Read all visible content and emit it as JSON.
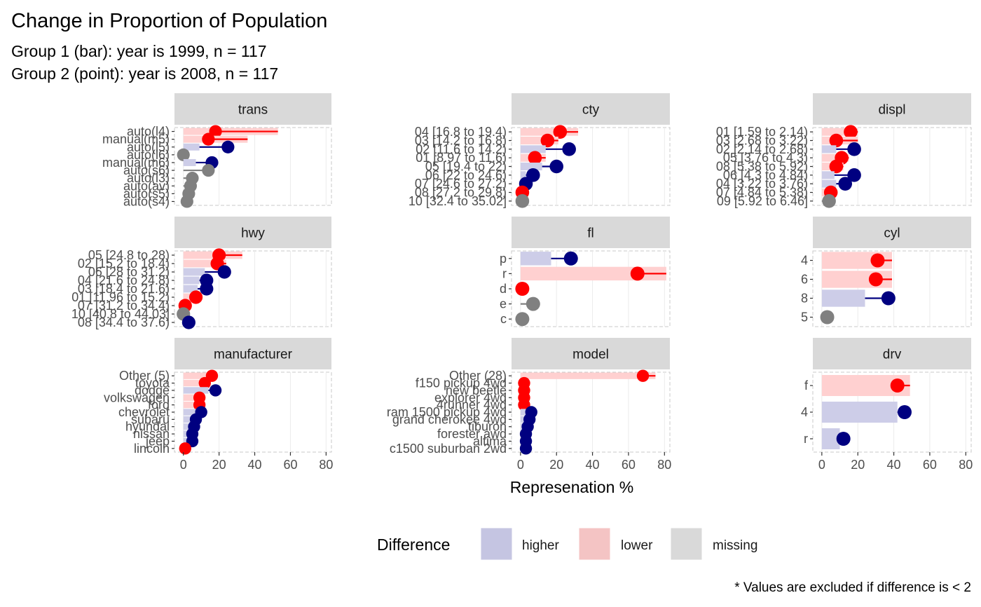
{
  "chart_data": {
    "type": "bar",
    "title": "Change in Proportion of Population",
    "subtitle_lines": [
      "Group 1 (bar): year is 1999, n = 117",
      "Group 2 (point): year is 2008, n = 117"
    ],
    "xlabel": "Represenation %",
    "xlim": [
      -5,
      83
    ],
    "xticks": [
      0,
      20,
      40,
      60,
      80
    ],
    "caption": "* Values are excluded if difference is < 2",
    "legend": {
      "title": "Difference",
      "placement": "bottom",
      "items": [
        {
          "key": "higher",
          "label": "higher",
          "color": "#c5c5e2"
        },
        {
          "key": "lower",
          "label": "lower",
          "color": "#f4c4c4"
        },
        {
          "key": "missing",
          "label": "missing",
          "color": "#d9d9d9"
        }
      ]
    },
    "colors": {
      "higher_bar": "#cdcde8",
      "lower_bar": "#ffd0d0",
      "higher_point": "#000080",
      "lower_point": "#ff0000",
      "missing_point": "#808080",
      "strip_bg": "#d9d9d9",
      "panel_border": "#c8c8c8",
      "grid": "#ebebeb"
    },
    "facets": [
      {
        "name": "trans",
        "rows": [
          {
            "label": "auto(l4)",
            "bar": 53,
            "point": 18,
            "status": "lower"
          },
          {
            "label": "manual(m5)",
            "bar": 36,
            "point": 14,
            "status": "lower"
          },
          {
            "label": "auto(l5)",
            "bar": 9,
            "point": 25,
            "status": "higher"
          },
          {
            "label": "auto(l6)",
            "bar": 0,
            "point": 0,
            "status": "missing"
          },
          {
            "label": "manual(m6)",
            "bar": 7,
            "point": 16,
            "status": "higher"
          },
          {
            "label": "auto(s6)",
            "bar": 0,
            "point": 14,
            "status": "missing"
          },
          {
            "label": "auto(l3)",
            "bar": 0,
            "point": 5,
            "status": "missing"
          },
          {
            "label": "auto(av)",
            "bar": 0,
            "point": 4,
            "status": "missing"
          },
          {
            "label": "auto(s5)",
            "bar": 0,
            "point": 3,
            "status": "missing"
          },
          {
            "label": "auto(s4)",
            "bar": 0,
            "point": 2,
            "status": "missing"
          }
        ]
      },
      {
        "name": "cty",
        "rows": [
          {
            "label": "04 [16.8 to 19.4)",
            "bar": 32,
            "point": 22,
            "status": "lower"
          },
          {
            "label": "03 [14.2 to 16.8)",
            "bar": 21,
            "point": 15,
            "status": "lower"
          },
          {
            "label": "02 [11.6 to 14.2)",
            "bar": 14,
            "point": 27,
            "status": "higher"
          },
          {
            "label": "01 [8.97 to 11.6)",
            "bar": 14,
            "point": 8,
            "status": "lower"
          },
          {
            "label": "05 [19.4 to 22)",
            "bar": 12,
            "point": 20,
            "status": "higher"
          },
          {
            "label": "06 [22 to 24.6)",
            "bar": 3,
            "point": 7,
            "status": "higher"
          },
          {
            "label": "07 [24.6 to 27.2)",
            "bar": 1,
            "point": 3,
            "status": "higher"
          },
          {
            "label": "08 [27.2 to 29.8)",
            "bar": 2,
            "point": 1,
            "status": "lower"
          },
          {
            "label": "10 [32.4 to 35.02]",
            "bar": 0,
            "point": 1,
            "status": "missing"
          }
        ]
      },
      {
        "name": "displ",
        "rows": [
          {
            "label": "01 [1.59 to 2.14)",
            "bar": 20,
            "point": 16,
            "status": "lower"
          },
          {
            "label": "03 [2.68 to 3.22)",
            "bar": 20,
            "point": 8,
            "status": "lower"
          },
          {
            "label": "02 [2.14 to 2.68)",
            "bar": 8,
            "point": 18,
            "status": "higher"
          },
          {
            "label": "05 [3.76 to 4.3)",
            "bar": 15,
            "point": 11,
            "status": "lower"
          },
          {
            "label": "08 [5.38 to 5.92)",
            "bar": 12,
            "point": 8,
            "status": "lower"
          },
          {
            "label": "06 [4.3 to 4.84)",
            "bar": 7,
            "point": 18,
            "status": "higher"
          },
          {
            "label": "04 [3.22 to 3.76)",
            "bar": 8,
            "point": 13,
            "status": "higher"
          },
          {
            "label": "07 [4.84 to 5.38)",
            "bar": 6,
            "point": 5,
            "status": "lower"
          },
          {
            "label": "09 [5.92 to 6.46]",
            "bar": 0,
            "point": 4,
            "status": "missing"
          }
        ]
      },
      {
        "name": "hwy",
        "rows": [
          {
            "label": "05 [24.8 to 28)",
            "bar": 33,
            "point": 20,
            "status": "lower"
          },
          {
            "label": "02 [15.2 to 18.4)",
            "bar": 24,
            "point": 19,
            "status": "lower"
          },
          {
            "label": "06 [28 to 31.2)",
            "bar": 12,
            "point": 23,
            "status": "higher"
          },
          {
            "label": "04 [21.6 to 24.8)",
            "bar": 9,
            "point": 13,
            "status": "higher"
          },
          {
            "label": "03 [18.4 to 21.6)",
            "bar": 8,
            "point": 13,
            "status": "higher"
          },
          {
            "label": "01 [11.96 to 15.2)",
            "bar": 9,
            "point": 7,
            "status": "lower"
          },
          {
            "label": "07 [31.2 to 34.4)",
            "bar": 3,
            "point": 1,
            "status": "lower"
          },
          {
            "label": "10 [40.8 to 44.03]",
            "bar": 0,
            "point": 0,
            "status": "missing"
          },
          {
            "label": "08 [34.4 to 37.6)",
            "bar": 0,
            "point": 3,
            "status": "higher"
          }
        ]
      },
      {
        "name": "fl",
        "rows": [
          {
            "label": "p",
            "bar": 17,
            "point": 28,
            "status": "higher"
          },
          {
            "label": "r",
            "bar": 81,
            "point": 65,
            "status": "lower"
          },
          {
            "label": "d",
            "bar": 0,
            "point": 1,
            "status": "lower"
          },
          {
            "label": "e",
            "bar": 0,
            "point": 7,
            "status": "missing"
          },
          {
            "label": "c",
            "bar": 0,
            "point": 1,
            "status": "missing"
          }
        ]
      },
      {
        "name": "cyl",
        "rows": [
          {
            "label": "4",
            "bar": 39,
            "point": 31,
            "status": "lower"
          },
          {
            "label": "6",
            "bar": 39,
            "point": 30,
            "status": "lower"
          },
          {
            "label": "8",
            "bar": 24,
            "point": 37,
            "status": "higher"
          },
          {
            "label": "5",
            "bar": 0,
            "point": 3,
            "status": "missing"
          }
        ]
      },
      {
        "name": "manufacturer",
        "rows": [
          {
            "label": "Other (5)",
            "bar": 16,
            "point": 16,
            "status": "lower"
          },
          {
            "label": "toyota",
            "bar": 13,
            "point": 12,
            "status": "lower"
          },
          {
            "label": "dodge",
            "bar": 14,
            "point": 18,
            "status": "higher"
          },
          {
            "label": "volkswagen",
            "bar": 12,
            "point": 9,
            "status": "lower"
          },
          {
            "label": "ford",
            "bar": 11,
            "point": 9,
            "status": "lower"
          },
          {
            "label": "chevrolet",
            "bar": 8,
            "point": 10,
            "status": "higher"
          },
          {
            "label": "subaru",
            "bar": 5,
            "point": 7,
            "status": "higher"
          },
          {
            "label": "hyundai",
            "bar": 5,
            "point": 6,
            "status": "higher"
          },
          {
            "label": "nissan",
            "bar": 4,
            "point": 5,
            "status": "higher"
          },
          {
            "label": "jeep",
            "bar": 4,
            "point": 5,
            "status": "higher"
          },
          {
            "label": "lincoln",
            "bar": 2,
            "point": 1,
            "status": "lower"
          }
        ]
      },
      {
        "name": "model",
        "rows": [
          {
            "label": "Other (28)",
            "bar": 75,
            "point": 68,
            "status": "lower"
          },
          {
            "label": "f150 pickup 4wd",
            "bar": 4,
            "point": 2,
            "status": "lower"
          },
          {
            "label": "new beetle",
            "bar": 4,
            "point": 2,
            "status": "lower"
          },
          {
            "label": "explorer 4wd",
            "bar": 4,
            "point": 2,
            "status": "lower"
          },
          {
            "label": "4runner 4wd",
            "bar": 4,
            "point": 2,
            "status": "lower"
          },
          {
            "label": "ram 1500 pickup 4wd",
            "bar": 3,
            "point": 6,
            "status": "higher"
          },
          {
            "label": "grand cherokee 4wd",
            "bar": 3,
            "point": 5,
            "status": "higher"
          },
          {
            "label": "tiburon",
            "bar": 3,
            "point": 4,
            "status": "higher"
          },
          {
            "label": "forester awd",
            "bar": 3,
            "point": 3,
            "status": "higher"
          },
          {
            "label": "altima",
            "bar": 3,
            "point": 3,
            "status": "higher"
          },
          {
            "label": "c1500 suburban 2wd",
            "bar": 3,
            "point": 3,
            "status": "higher"
          }
        ]
      },
      {
        "name": "drv",
        "rows": [
          {
            "label": "f",
            "bar": 49,
            "point": 42,
            "status": "lower"
          },
          {
            "label": "4",
            "bar": 42,
            "point": 46,
            "status": "higher"
          },
          {
            "label": "r",
            "bar": 10,
            "point": 12,
            "status": "higher"
          }
        ]
      }
    ]
  }
}
